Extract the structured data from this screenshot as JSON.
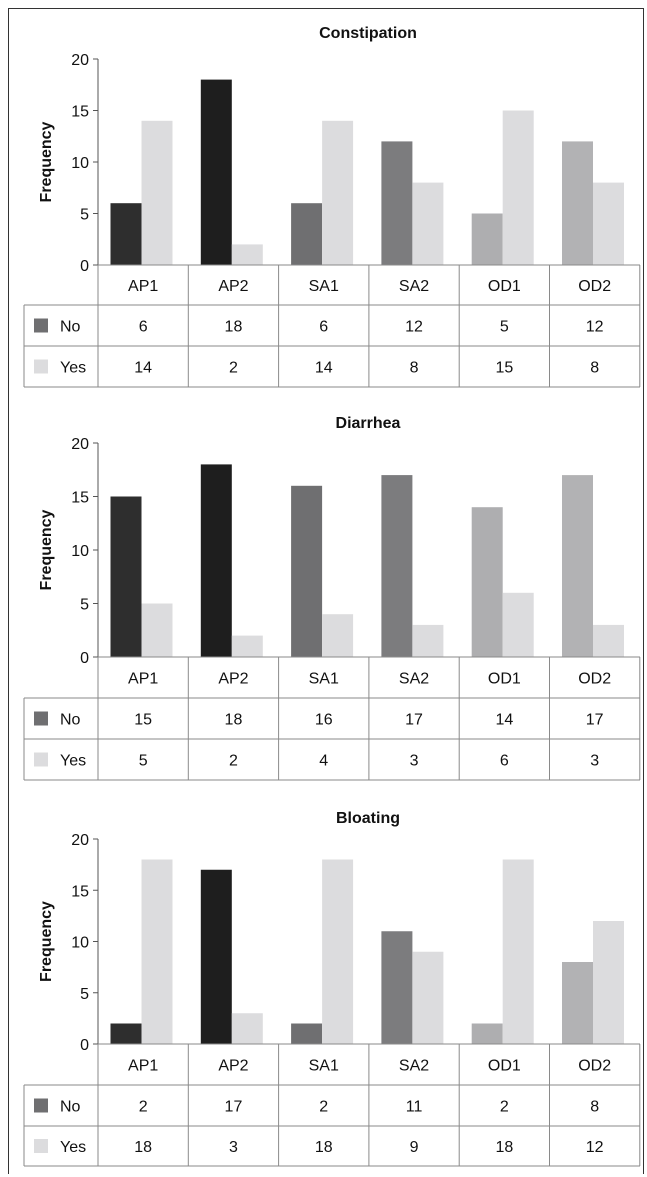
{
  "chart_data": [
    {
      "type": "bar",
      "title": "Constipation",
      "ylabel": "Frequency",
      "xlabel": "",
      "ylim": [
        0,
        20
      ],
      "yticks": [
        0,
        5,
        10,
        15,
        20
      ],
      "categories": [
        "AP1",
        "AP2",
        "SA1",
        "SA2",
        "OD1",
        "OD2"
      ],
      "series": [
        {
          "name": "No",
          "values": [
            6,
            18,
            6,
            12,
            5,
            12
          ]
        },
        {
          "name": "Yes",
          "values": [
            14,
            2,
            14,
            8,
            15,
            8
          ]
        }
      ],
      "legend": "data-table-below",
      "grid": false
    },
    {
      "type": "bar",
      "title": "Diarrhea",
      "ylabel": "Frequency",
      "xlabel": "",
      "ylim": [
        0,
        20
      ],
      "yticks": [
        0,
        5,
        10,
        15,
        20
      ],
      "categories": [
        "AP1",
        "AP2",
        "SA1",
        "SA2",
        "OD1",
        "OD2"
      ],
      "series": [
        {
          "name": "No",
          "values": [
            15,
            18,
            16,
            17,
            14,
            17
          ]
        },
        {
          "name": "Yes",
          "values": [
            5,
            2,
            4,
            3,
            6,
            3
          ]
        }
      ],
      "legend": "data-table-below",
      "grid": false
    },
    {
      "type": "bar",
      "title": "Bloating",
      "ylabel": "Frequency",
      "xlabel": "",
      "ylim": [
        0,
        20
      ],
      "yticks": [
        0,
        5,
        10,
        15,
        20
      ],
      "categories": [
        "AP1",
        "AP2",
        "SA1",
        "SA2",
        "OD1",
        "OD2"
      ],
      "series": [
        {
          "name": "No",
          "values": [
            2,
            17,
            2,
            11,
            2,
            8
          ]
        },
        {
          "name": "Yes",
          "values": [
            18,
            3,
            18,
            9,
            18,
            12
          ]
        }
      ],
      "legend": "data-table-below",
      "grid": false
    }
  ],
  "colors": {
    "no_by_category": [
      "#2e2e2e",
      "#1e1e1e",
      "#6f6f71",
      "#7c7c7e",
      "#aeaeb0",
      "#b2b2b4"
    ],
    "no_legend": "#6f6f71",
    "yes": "#dcdcde",
    "axis": "#555555",
    "table_border": "#8a8a8a"
  }
}
